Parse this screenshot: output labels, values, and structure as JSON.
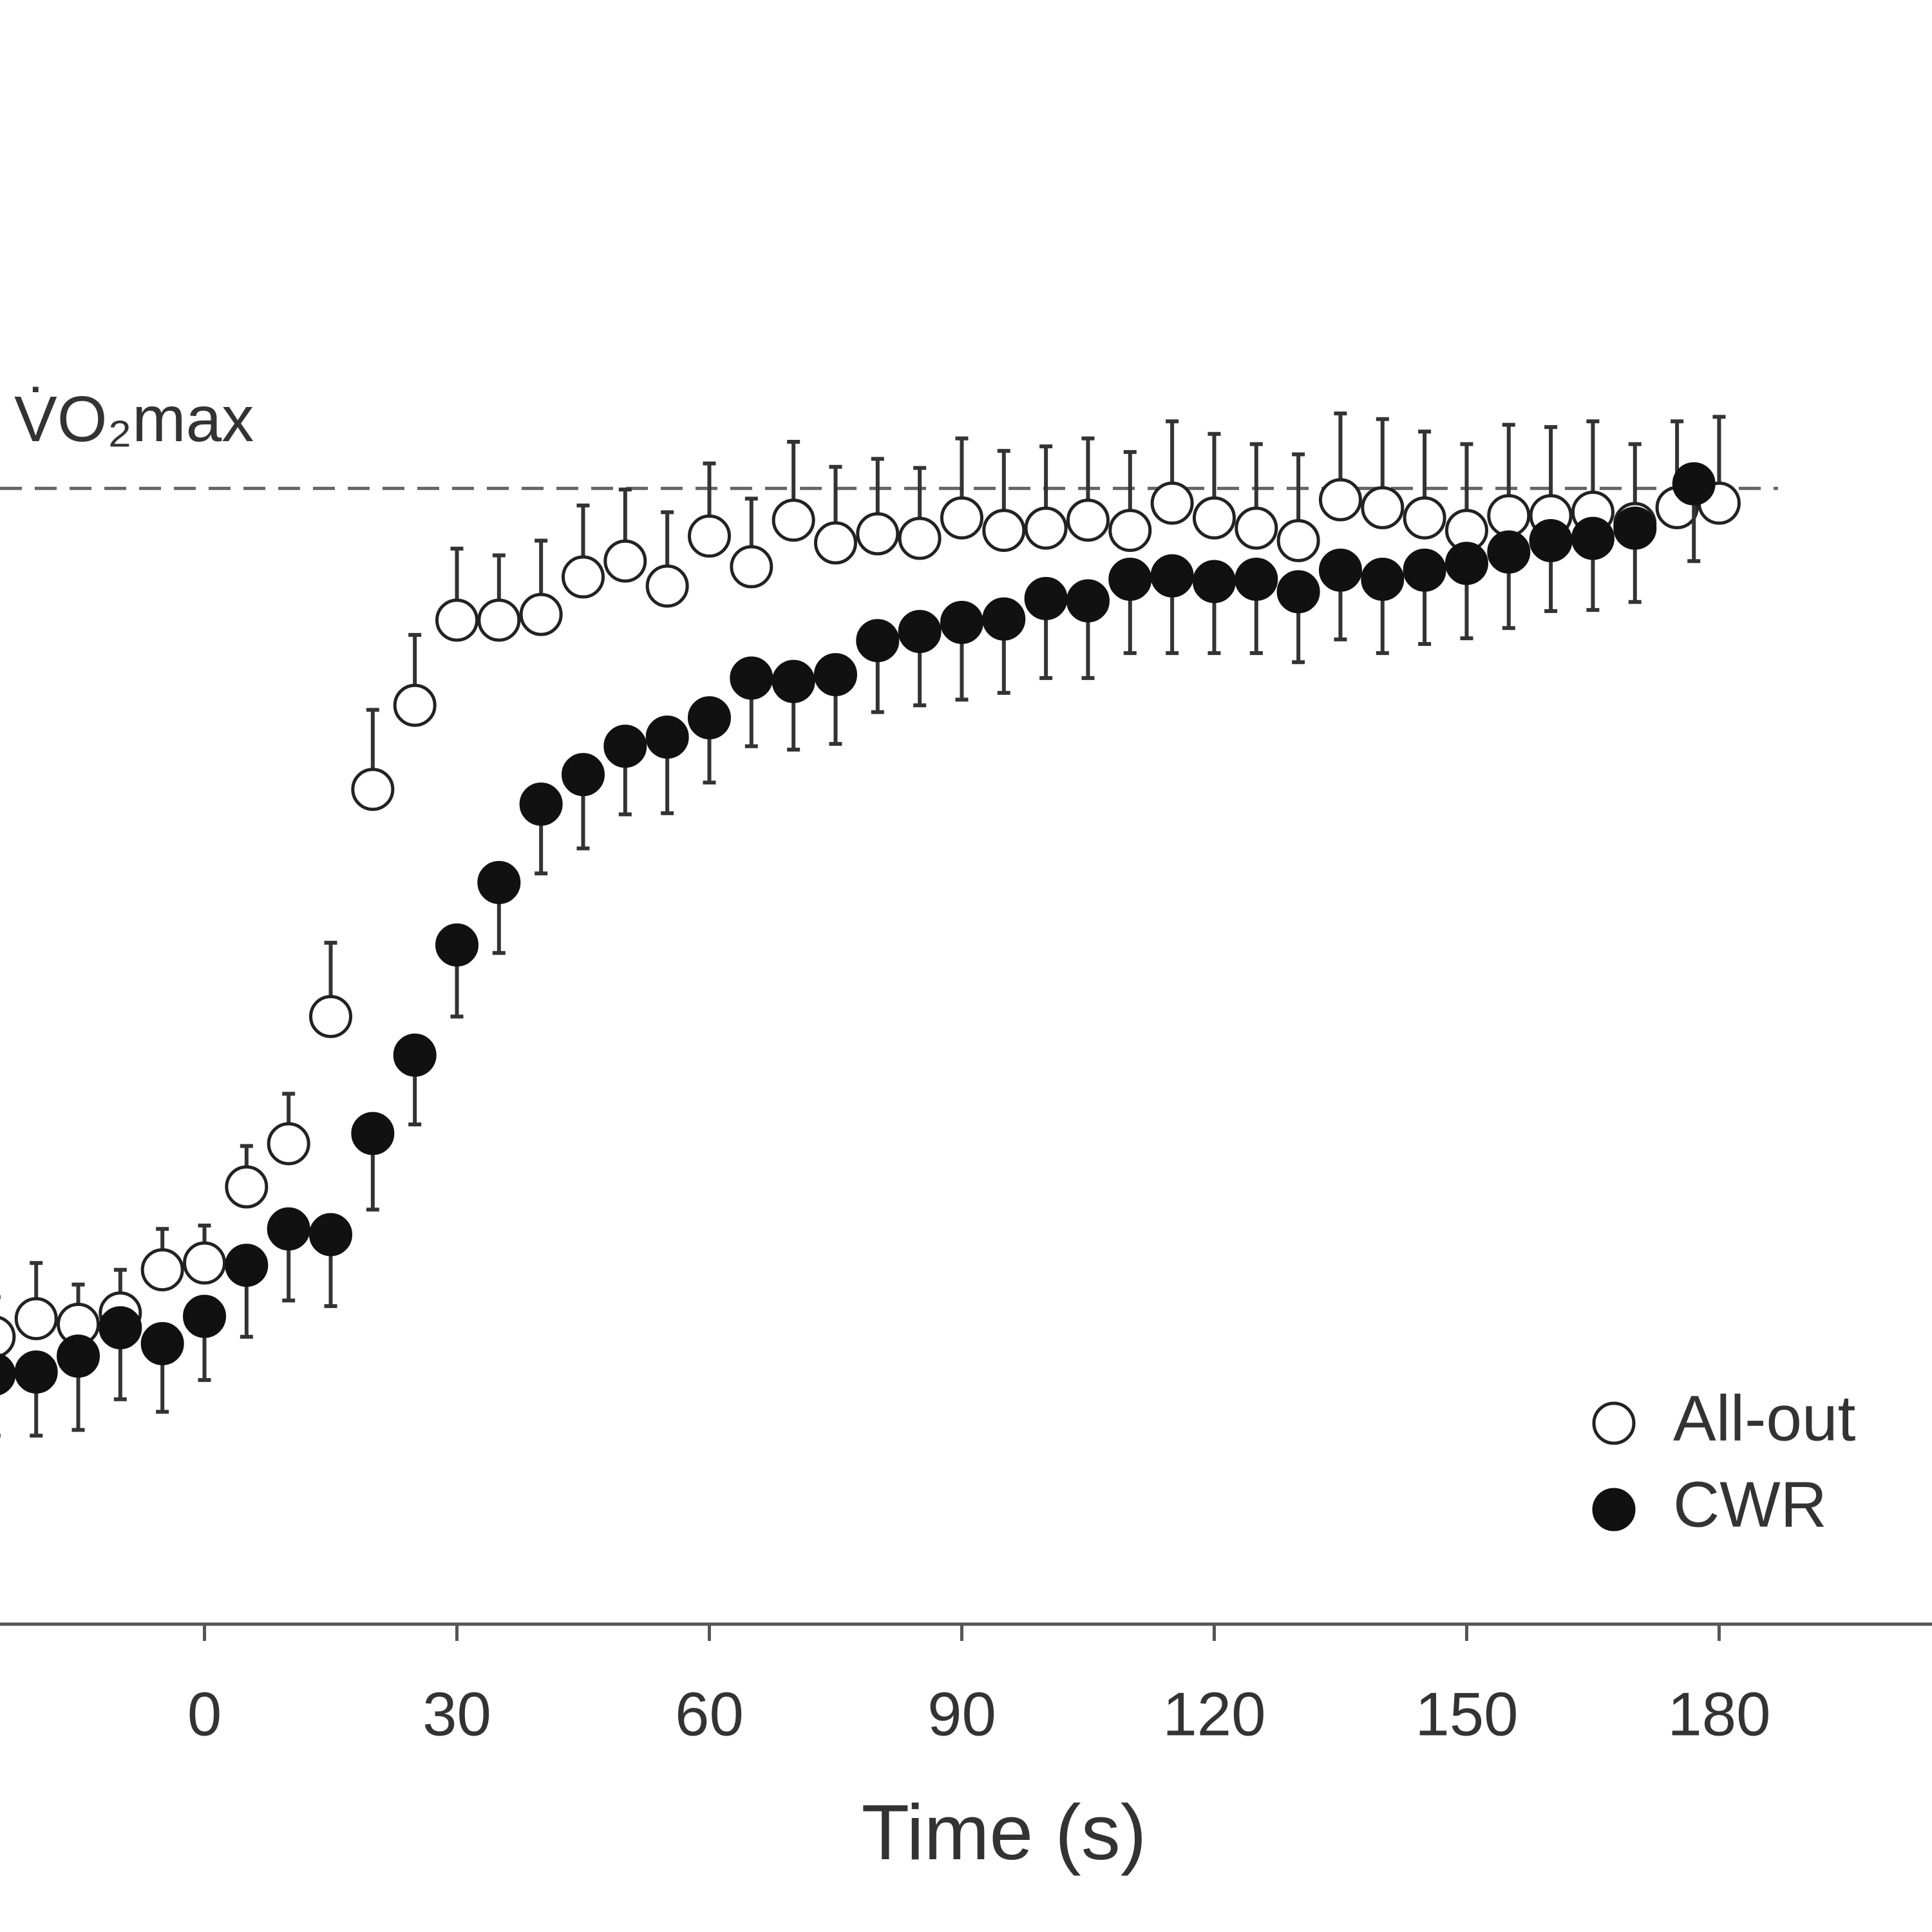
{
  "chart_data": {
    "type": "scatter",
    "x_label": "Time (s)",
    "xlim": [
      -24.3,
      205.3
    ],
    "xticks": [
      0,
      30,
      60,
      90,
      120,
      150,
      180
    ],
    "ylim": [
      0,
      143
    ],
    "reference_line": {
      "y": 100,
      "x_end": 187,
      "label": "V̇O₂max"
    },
    "legend": "bottom-right",
    "series": [
      {
        "name": "All-out",
        "color": "#ffffff",
        "edge": "#222222",
        "error_direction": "up",
        "x": [
          -25,
          -20,
          -15,
          -10,
          -5,
          0,
          5,
          10,
          15,
          20,
          25,
          30,
          35,
          40,
          45,
          50,
          55,
          60,
          65,
          70,
          75,
          80,
          85,
          90,
          95,
          100,
          105,
          110,
          115,
          120,
          125,
          130,
          135,
          140,
          145,
          150,
          155,
          160,
          165,
          170,
          175,
          180
        ],
        "values": [
          25.3,
          26.9,
          26.4,
          27.4,
          31.2,
          31.8,
          38.5,
          42.3,
          53.5,
          73.5,
          80.9,
          88.4,
          88.4,
          88.9,
          92.2,
          93.6,
          91.4,
          95.8,
          93.1,
          97.2,
          95.2,
          96.0,
          95.6,
          97.4,
          96.3,
          96.5,
          97.2,
          96.3,
          98.7,
          97.4,
          96.5,
          95.4,
          99.0,
          98.3,
          97.4,
          96.3,
          97.6,
          97.6,
          97.9,
          96.9,
          98.3,
          98.7
        ],
        "errors": [
          3.5,
          4.9,
          3.5,
          3.8,
          3.6,
          3.3,
          3.6,
          4.4,
          6.5,
          7.0,
          6.2,
          6.3,
          5.7,
          6.5,
          6.3,
          6.3,
          6.5,
          6.4,
          6.0,
          6.9,
          6.7,
          6.6,
          6.2,
          7.0,
          7.0,
          7.2,
          7.2,
          6.9,
          7.2,
          7.4,
          7.4,
          7.6,
          7.6,
          7.8,
          7.6,
          7.6,
          8.0,
          7.8,
          8.0,
          7.0,
          7.6,
          7.6
        ]
      },
      {
        "name": "CWR",
        "color": "#111111",
        "edge": "#111111",
        "error_direction": "down",
        "x": [
          -25,
          -20,
          -15,
          -10,
          -5,
          0,
          5,
          10,
          15,
          20,
          25,
          30,
          35,
          40,
          45,
          50,
          55,
          60,
          65,
          70,
          75,
          80,
          85,
          90,
          95,
          100,
          105,
          110,
          115,
          120,
          125,
          130,
          135,
          140,
          145,
          150,
          155,
          160,
          165,
          170,
          177
        ],
        "values": [
          22.0,
          22.2,
          23.6,
          26.1,
          24.7,
          27.1,
          31.6,
          34.8,
          34.3,
          43.2,
          50.1,
          59.8,
          65.3,
          72.2,
          74.8,
          77.3,
          78.1,
          79.8,
          83.3,
          83.0,
          83.6,
          86.6,
          87.4,
          88.2,
          88.5,
          90.3,
          90.1,
          92.0,
          92.3,
          91.8,
          92.0,
          90.9,
          92.8,
          92.0,
          92.8,
          93.4,
          94.4,
          95.4,
          95.6,
          96.5,
          100.4
        ],
        "errors": [
          5.4,
          5.6,
          6.5,
          6.3,
          6.0,
          5.6,
          6.3,
          6.3,
          6.3,
          6.7,
          6.1,
          6.3,
          6.2,
          6.1,
          6.5,
          6.0,
          6.7,
          5.7,
          6.0,
          6.0,
          6.1,
          6.3,
          6.5,
          6.8,
          6.5,
          7.0,
          6.8,
          6.5,
          6.8,
          6.3,
          6.5,
          6.2,
          6.1,
          6.5,
          6.5,
          6.6,
          6.7,
          6.2,
          6.3,
          6.5,
          6.8
        ]
      }
    ]
  }
}
